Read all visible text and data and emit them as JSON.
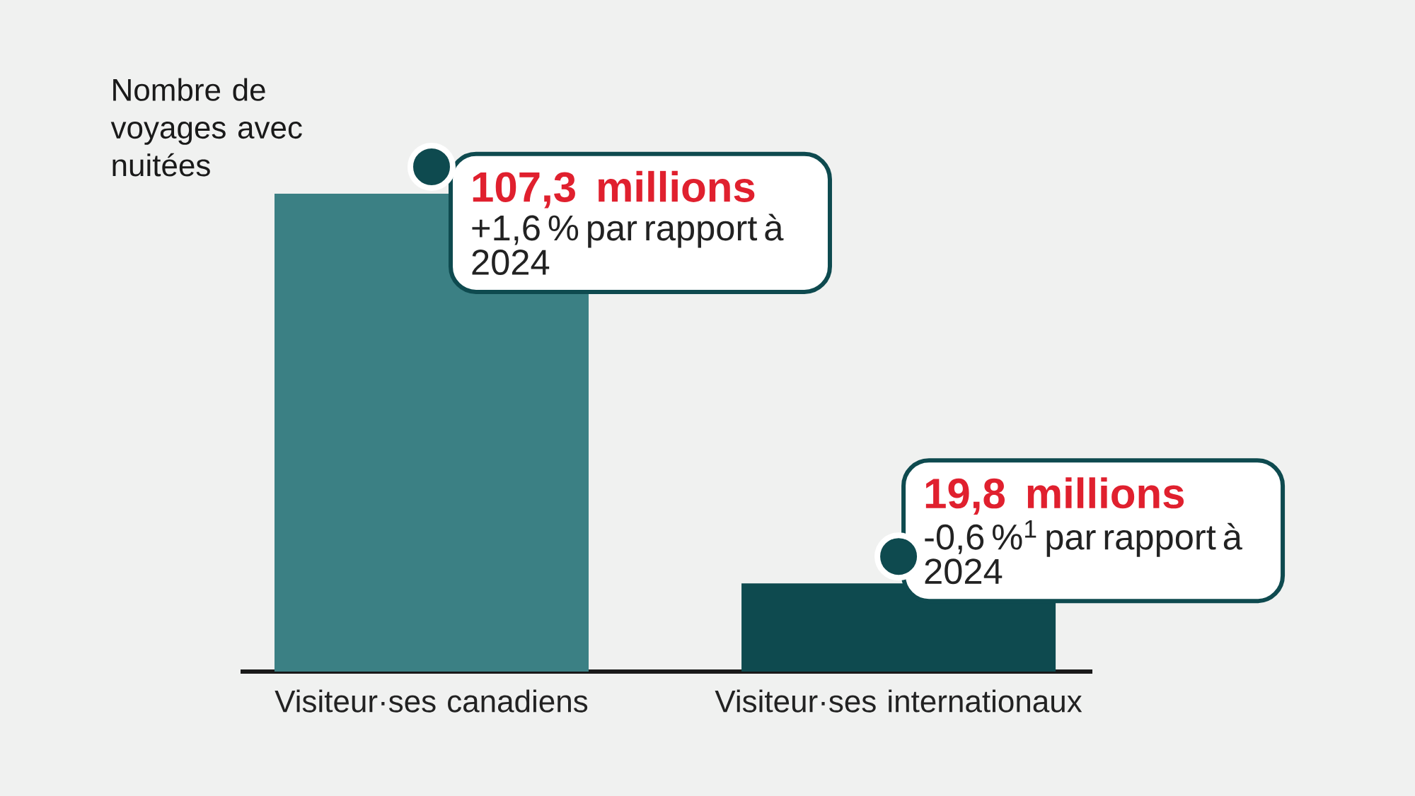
{
  "chart_data": {
    "type": "bar",
    "ylabel": "Nombre de voyages avec nuitées",
    "categories": [
      "Visiteur·ses canadiens",
      "Visiteur·ses internationaux"
    ],
    "values": [
      107.3,
      19.8
    ],
    "colors": [
      "#3b8084",
      "#0e4a4f"
    ],
    "value_labels": [
      "107,3 millions",
      "19,8 millions"
    ],
    "annotations": [
      "+1,6 % par rapport à 2024",
      "-0,6 %$^{1}$ par rapport à 2024"
    ]
  }
}
